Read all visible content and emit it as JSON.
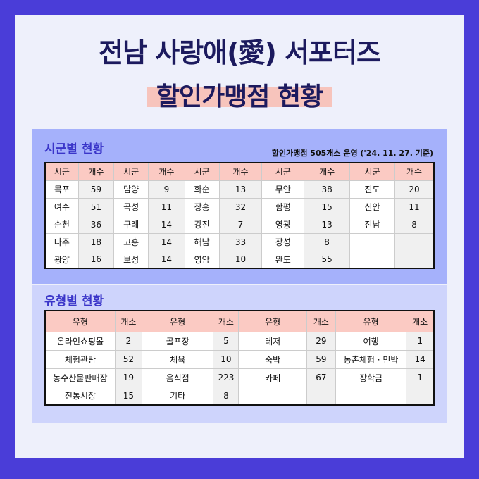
{
  "title": "전남 사랑애(愛) 서포터즈",
  "subtitle": "할인가맹점 현황",
  "region": {
    "heading": "시군별 현황",
    "note": "할인가맹점 505개소 운영 ('24. 11. 27. 기준)",
    "headers": [
      "시군",
      "개수",
      "시군",
      "개수",
      "시군",
      "개수",
      "시군",
      "개수",
      "시군",
      "개수"
    ],
    "rows": [
      [
        "목포",
        "59",
        "담양",
        "9",
        "화순",
        "13",
        "무안",
        "38",
        "진도",
        "20"
      ],
      [
        "여수",
        "51",
        "곡성",
        "11",
        "장흥",
        "32",
        "함평",
        "15",
        "신안",
        "11"
      ],
      [
        "순천",
        "36",
        "구례",
        "14",
        "강진",
        "7",
        "영광",
        "13",
        "전남",
        "8"
      ],
      [
        "나주",
        "18",
        "고흥",
        "14",
        "해남",
        "33",
        "장성",
        "8",
        "",
        ""
      ],
      [
        "광양",
        "16",
        "보성",
        "14",
        "영암",
        "10",
        "완도",
        "55",
        "",
        ""
      ]
    ]
  },
  "type": {
    "heading": "유형별 현황",
    "headers": [
      "유형",
      "개소",
      "유형",
      "개소",
      "유형",
      "개소",
      "유형",
      "개소"
    ],
    "rows": [
      [
        "온라인쇼핑몰",
        "2",
        "골프장",
        "5",
        "레저",
        "29",
        "여행",
        "1"
      ],
      [
        "체험관람",
        "52",
        "체육",
        "10",
        "숙박",
        "59",
        "농촌체험 · 민박",
        "14"
      ],
      [
        "농수산물판매장",
        "19",
        "음식점",
        "223",
        "카페",
        "67",
        "장학금",
        "1"
      ],
      [
        "전통시장",
        "15",
        "기타",
        "8",
        "",
        "",
        "",
        ""
      ]
    ]
  }
}
